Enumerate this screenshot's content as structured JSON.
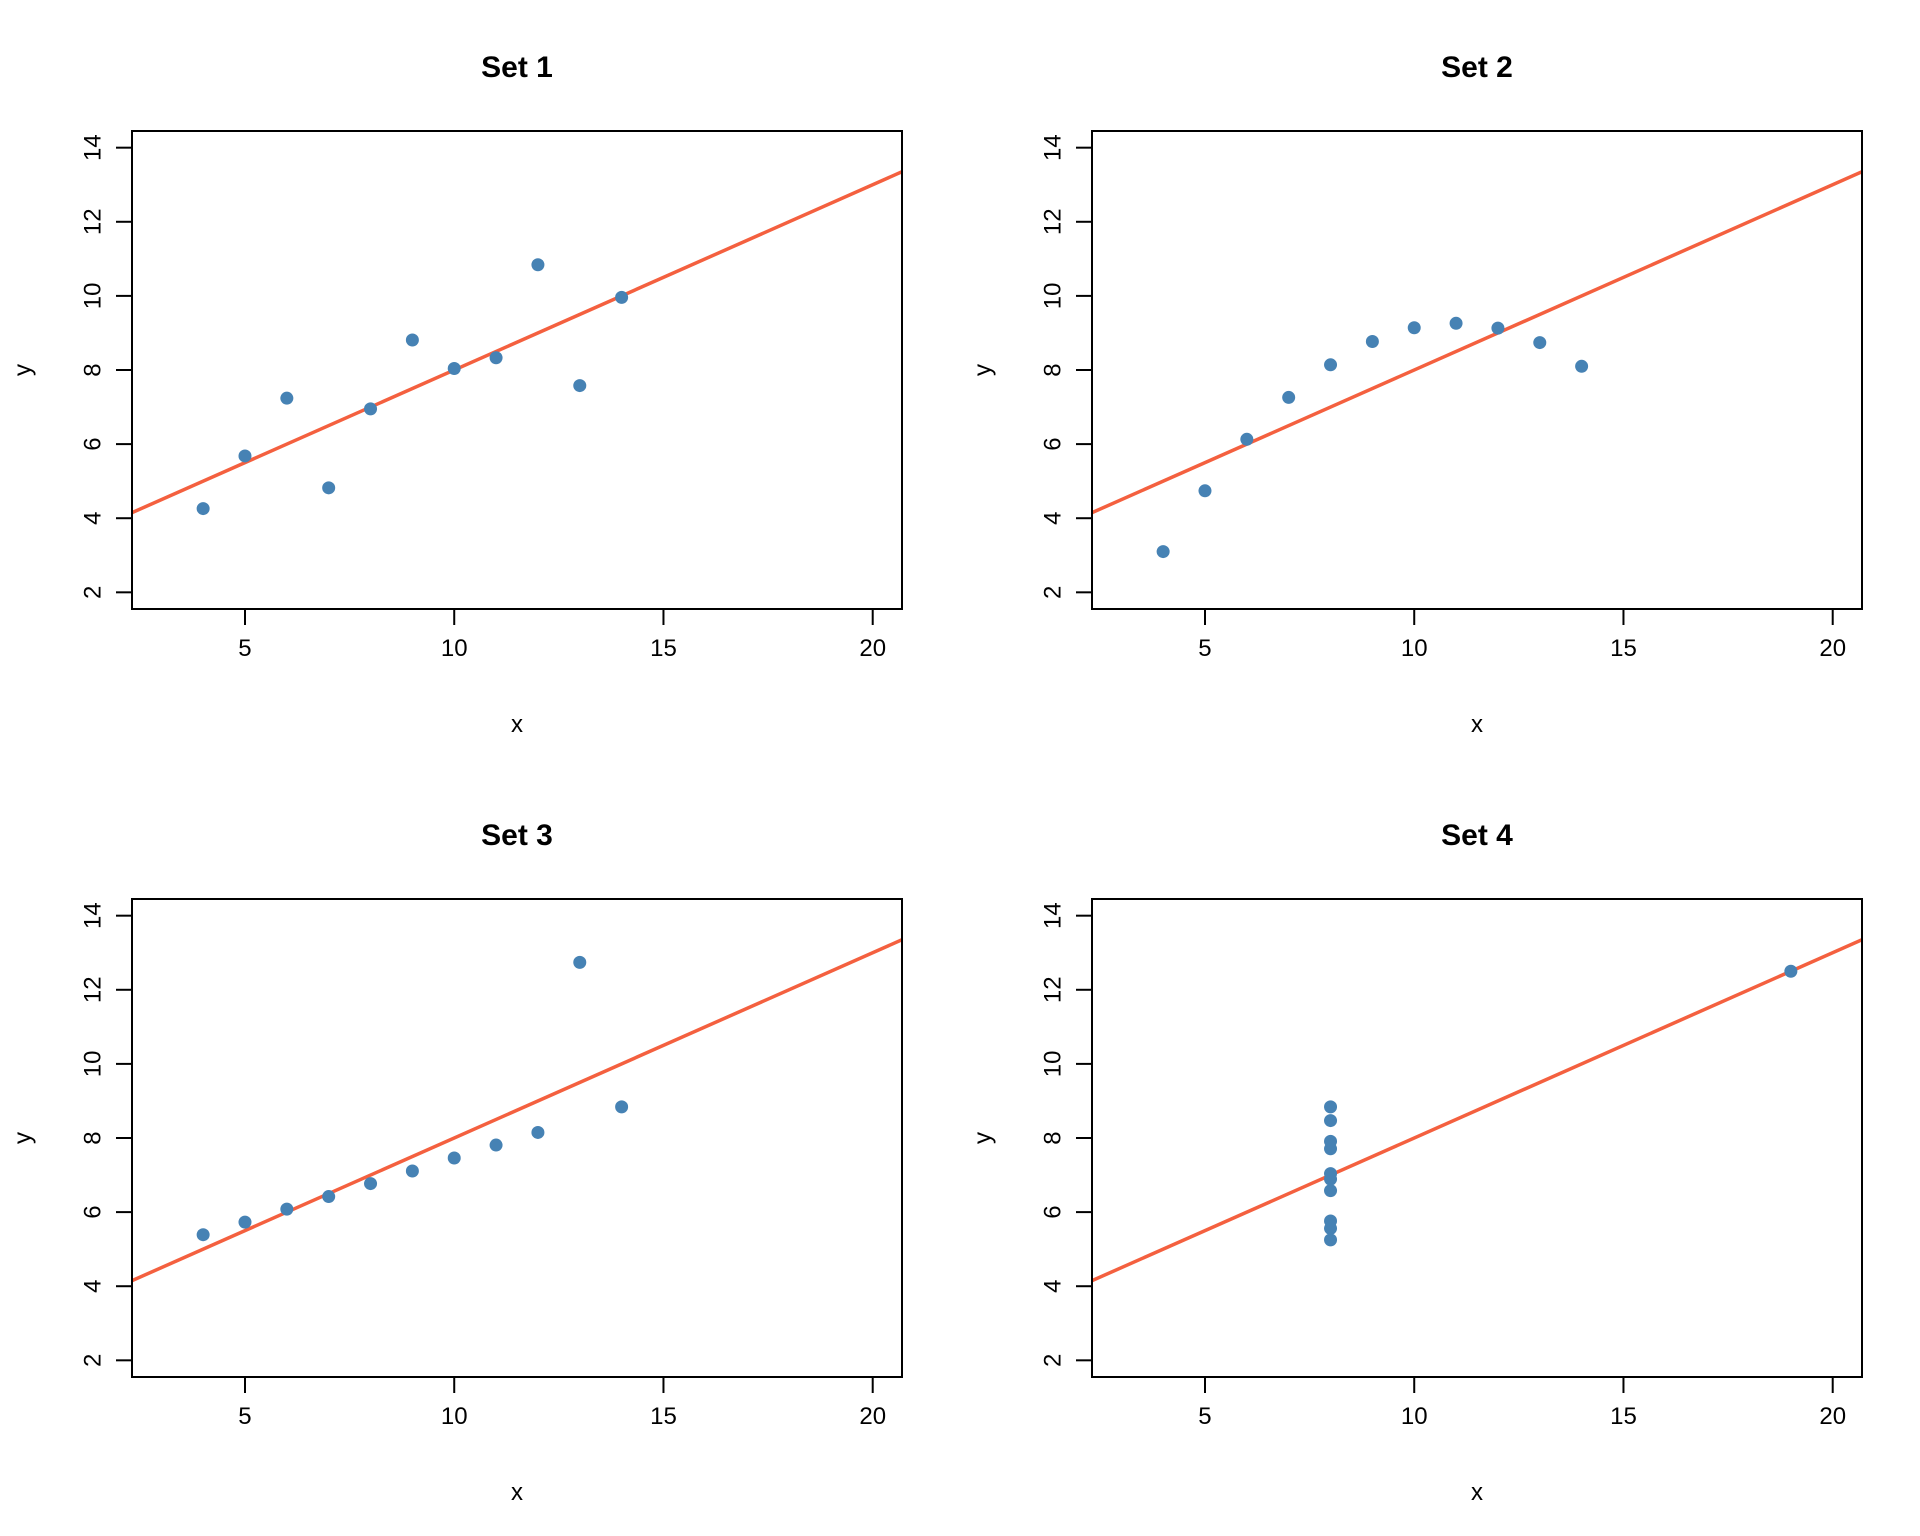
{
  "chart_data": [
    {
      "type": "scatter",
      "title": "Set 1",
      "xlabel": "x",
      "ylabel": "y",
      "xlim": [
        2.3,
        20.7
      ],
      "ylim": [
        1.55,
        14.45
      ],
      "xticks": [
        5,
        10,
        15,
        20
      ],
      "yticks": [
        2,
        4,
        6,
        8,
        10,
        12,
        14
      ],
      "grid": false,
      "x": [
        10,
        8,
        13,
        9,
        11,
        14,
        6,
        4,
        12,
        7,
        5
      ],
      "y": [
        8.04,
        6.95,
        7.58,
        8.81,
        8.33,
        9.96,
        7.24,
        4.26,
        10.84,
        4.82,
        5.68
      ],
      "fit_line": {
        "intercept": 3.0,
        "slope": 0.5
      }
    },
    {
      "type": "scatter",
      "title": "Set 2",
      "xlabel": "x",
      "ylabel": "y",
      "xlim": [
        2.3,
        20.7
      ],
      "ylim": [
        1.55,
        14.45
      ],
      "xticks": [
        5,
        10,
        15,
        20
      ],
      "yticks": [
        2,
        4,
        6,
        8,
        10,
        12,
        14
      ],
      "grid": false,
      "x": [
        10,
        8,
        13,
        9,
        11,
        14,
        6,
        4,
        12,
        7,
        5
      ],
      "y": [
        9.14,
        8.14,
        8.74,
        8.77,
        9.26,
        8.1,
        6.13,
        3.1,
        9.13,
        7.26,
        4.74
      ],
      "fit_line": {
        "intercept": 3.0,
        "slope": 0.5
      }
    },
    {
      "type": "scatter",
      "title": "Set 3",
      "xlabel": "x",
      "ylabel": "y",
      "xlim": [
        2.3,
        20.7
      ],
      "ylim": [
        1.55,
        14.45
      ],
      "xticks": [
        5,
        10,
        15,
        20
      ],
      "yticks": [
        2,
        4,
        6,
        8,
        10,
        12,
        14
      ],
      "grid": false,
      "x": [
        10,
        8,
        13,
        9,
        11,
        14,
        6,
        4,
        12,
        7,
        5
      ],
      "y": [
        7.46,
        6.77,
        12.74,
        7.11,
        7.81,
        8.84,
        6.08,
        5.39,
        8.15,
        6.42,
        5.73
      ],
      "fit_line": {
        "intercept": 3.0,
        "slope": 0.5
      }
    },
    {
      "type": "scatter",
      "title": "Set 4",
      "xlabel": "x",
      "ylabel": "y",
      "xlim": [
        2.3,
        20.7
      ],
      "ylim": [
        1.55,
        14.45
      ],
      "xticks": [
        5,
        10,
        15,
        20
      ],
      "yticks": [
        2,
        4,
        6,
        8,
        10,
        12,
        14
      ],
      "grid": false,
      "x": [
        8,
        8,
        8,
        8,
        8,
        8,
        8,
        19,
        8,
        8,
        8
      ],
      "y": [
        6.58,
        5.76,
        7.71,
        8.84,
        8.47,
        7.04,
        5.25,
        12.5,
        5.56,
        7.91,
        6.89
      ],
      "fit_line": {
        "intercept": 3.0,
        "slope": 0.5
      }
    }
  ],
  "colors": {
    "points": "#4682b4",
    "line": "#f4603f",
    "axis": "#000000"
  }
}
